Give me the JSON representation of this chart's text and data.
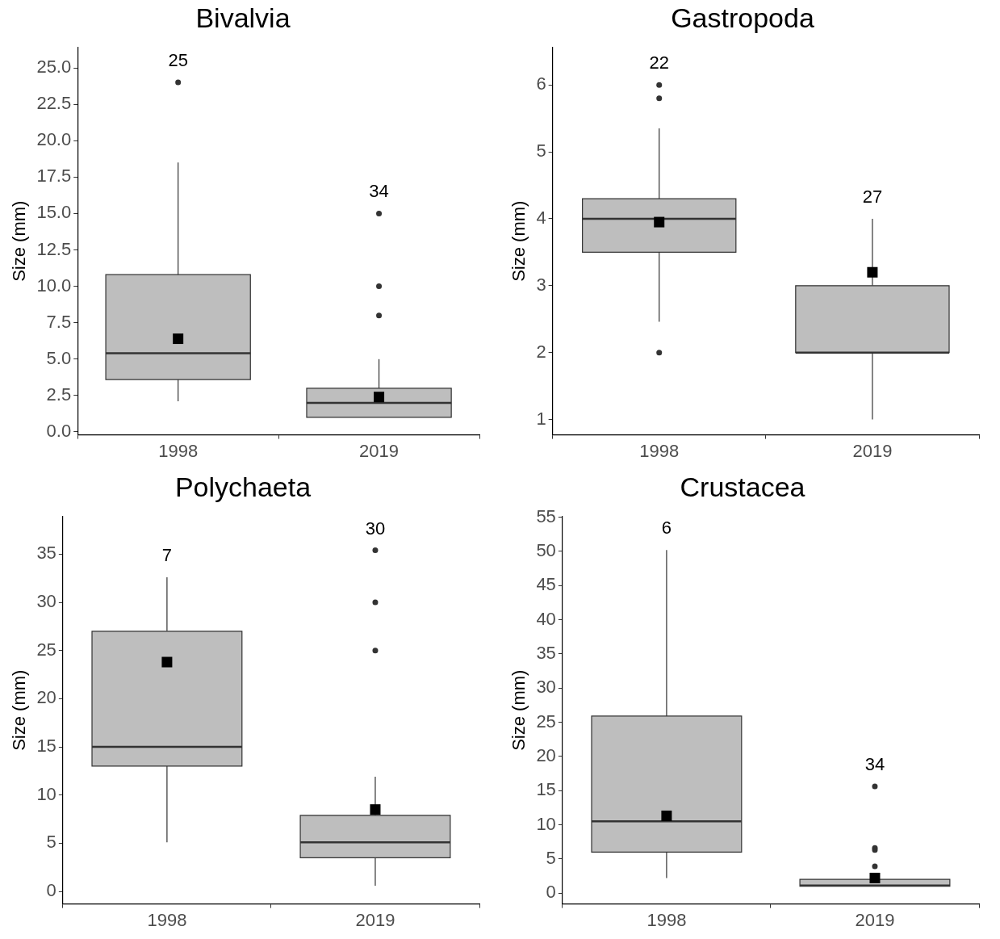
{
  "chart_data": [
    {
      "type": "box",
      "title": "Bivalvia",
      "ylabel": "Size (mm)",
      "categories": [
        "1998",
        "2019"
      ],
      "color": "#bebebe",
      "ylim": [
        -0.2,
        26.4
      ],
      "yticks": [
        {
          "value": 0,
          "label": "0.0"
        },
        {
          "value": 2.5,
          "label": "2.5"
        },
        {
          "value": 5,
          "label": "5.0"
        },
        {
          "value": 7.5,
          "label": "7.5"
        },
        {
          "value": 10,
          "label": "10.0"
        },
        {
          "value": 12.5,
          "label": "12.5"
        },
        {
          "value": 15,
          "label": "15.0"
        },
        {
          "value": 17.5,
          "label": "17.5"
        },
        {
          "value": 20,
          "label": "20.0"
        },
        {
          "value": 22.5,
          "label": "22.5"
        },
        {
          "value": 25,
          "label": "25.0"
        }
      ],
      "grid": false,
      "legend": false,
      "boxes": [
        {
          "low": 2.1,
          "q1": 3.6,
          "median": 5.4,
          "q3": 10.8,
          "high": 18.5,
          "mean": 6.4,
          "outliers": [
            24
          ]
        },
        {
          "low": 1,
          "q1": 1,
          "median": 2,
          "q3": 3,
          "high": 5,
          "mean": 2.4,
          "outliers": [
            8,
            10,
            15
          ]
        }
      ],
      "annotations": [
        "25",
        "34"
      ]
    },
    {
      "type": "box",
      "title": "Gastropoda",
      "ylabel": "Size (mm)",
      "categories": [
        "1998",
        "2019"
      ],
      "color": "#bebebe",
      "ylim": [
        0.77,
        6.56
      ],
      "yticks": [
        1,
        2,
        3,
        4,
        5,
        6
      ],
      "grid": false,
      "legend": false,
      "boxes": [
        {
          "low": 2.46,
          "q1": 3.5,
          "median": 4,
          "q3": 4.3,
          "high": 5.35,
          "mean": 3.95,
          "outliers": [
            2,
            5.8,
            6
          ]
        },
        {
          "low": 1,
          "q1": 2,
          "median": 2,
          "q3": 3,
          "high": 4,
          "mean": 3.2
        }
      ],
      "annotations": [
        "22",
        "27"
      ]
    },
    {
      "type": "box",
      "title": "Polychaeta",
      "ylabel": "Size (mm)",
      "categories": [
        "1998",
        "2019"
      ],
      "color": "#bebebe",
      "ylim": [
        -1.3,
        38.9
      ],
      "yticks": [
        0,
        5,
        10,
        15,
        20,
        25,
        30,
        35
      ],
      "grid": false,
      "legend": false,
      "boxes": [
        {
          "low": 5.1,
          "q1": 13,
          "median": 15,
          "q3": 27,
          "high": 32.6,
          "mean": 23.8
        },
        {
          "low": 0.6,
          "q1": 3.5,
          "median": 5.1,
          "q3": 7.9,
          "high": 11.9,
          "mean": 8.5,
          "outliers": [
            25,
            30,
            35.4
          ]
        }
      ],
      "annotations": [
        "7",
        "30"
      ]
    },
    {
      "type": "box",
      "title": "Crustacea",
      "ylabel": "Size (mm)",
      "categories": [
        "1998",
        "2019"
      ],
      "color": "#bebebe",
      "ylim": [
        -1.6,
        55.1
      ],
      "yticks": [
        0,
        5,
        10,
        15,
        20,
        25,
        30,
        35,
        40,
        45,
        50,
        55
      ],
      "grid": false,
      "legend": false,
      "boxes": [
        {
          "low": 2.2,
          "q1": 6,
          "median": 10.5,
          "q3": 25.9,
          "high": 50.2,
          "mean": 11.3
        },
        {
          "low": 1,
          "q1": 1,
          "median": 1.1,
          "q3": 2,
          "high": 2.5,
          "mean": 2.2,
          "outliers": [
            3.9,
            6.3,
            6.6,
            15.6
          ]
        }
      ],
      "annotations": [
        "6",
        "34"
      ]
    }
  ]
}
